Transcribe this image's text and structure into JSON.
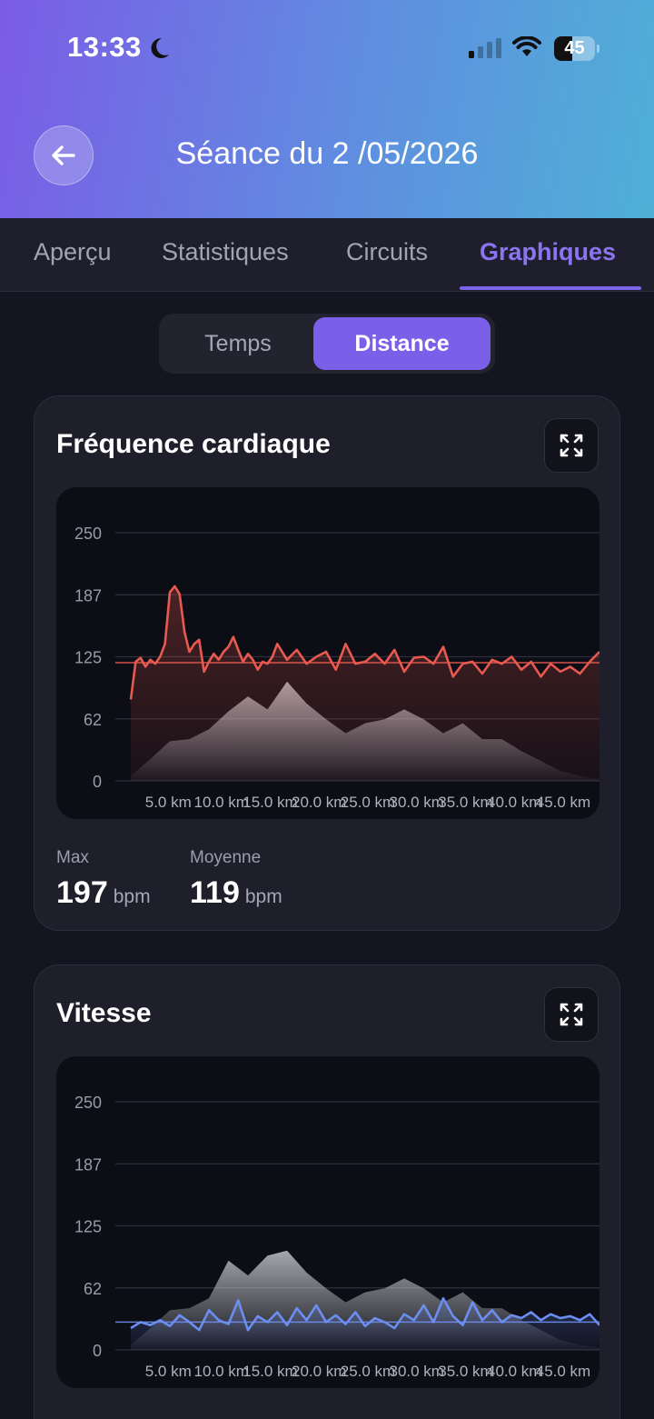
{
  "status_bar": {
    "time": "13:33",
    "battery": "45",
    "battery_level": 0.45,
    "icons": [
      "moon-icon",
      "signal-icon",
      "wifi-icon",
      "battery-icon"
    ]
  },
  "header": {
    "title": "Séance du 2 /05/2026",
    "back_icon": "arrow-left-icon"
  },
  "tabs": [
    {
      "label": "Aperçu",
      "active": false
    },
    {
      "label": "Statistiques",
      "active": false
    },
    {
      "label": "Circuits",
      "active": false
    },
    {
      "label": "Graphiques",
      "active": true
    }
  ],
  "segment": {
    "options": [
      "Temps",
      "Distance"
    ],
    "selected": "Distance"
  },
  "colors": {
    "accent": "#7a60e8",
    "heart_rate": "#e85a4f",
    "speed": "#6b8ef0",
    "background": "#151521",
    "card": "#1f1f2c"
  },
  "cards": {
    "heart_rate": {
      "title": "Fréquence cardiaque",
      "expand_icon": "expand-icon",
      "stats": [
        {
          "label": "Max",
          "value": "197",
          "unit": "bpm"
        },
        {
          "label": "Moyenne",
          "value": "119",
          "unit": "bpm"
        }
      ]
    },
    "speed": {
      "title": "Vitesse",
      "expand_icon": "expand-icon"
    }
  },
  "chart_data": [
    {
      "type": "line",
      "y_ticks": [
        "250",
        "187",
        "125",
        "62",
        "0"
      ],
      "x_ticks": [
        "5.0 km",
        "10.0 km",
        "15.0 km",
        "20.0 km",
        "25.0 km",
        "30.0 km",
        "35.0 km",
        "40.0 km",
        "45.0 km"
      ],
      "ylim": [
        0,
        250
      ],
      "xlim": [
        0,
        48
      ],
      "average_line": 119,
      "grid": true,
      "series": [
        {
          "color": "#e85a4f",
          "x": [
            0,
            0.5,
            1,
            1.5,
            2,
            2.5,
            3,
            3.5,
            4,
            4.5,
            5,
            5.5,
            6,
            6.5,
            7,
            7.5,
            8,
            8.5,
            9,
            9.5,
            10,
            10.5,
            11,
            11.5,
            12,
            12.5,
            13,
            13.5,
            14,
            14.5,
            15,
            16,
            17,
            18,
            19,
            20,
            21,
            22,
            23,
            24,
            25,
            26,
            27,
            28,
            29,
            30,
            31,
            32,
            33,
            34,
            35,
            36,
            37,
            38,
            39,
            40,
            41,
            42,
            43,
            44,
            45,
            46,
            47,
            48
          ],
          "values": [
            82,
            120,
            124,
            115,
            122,
            118,
            125,
            138,
            190,
            196,
            188,
            150,
            130,
            138,
            142,
            110,
            120,
            128,
            122,
            130,
            135,
            145,
            132,
            120,
            128,
            122,
            112,
            120,
            118,
            125,
            138,
            122,
            132,
            118,
            125,
            130,
            112,
            138,
            118,
            120,
            128,
            118,
            132,
            110,
            124,
            125,
            118,
            135,
            105,
            118,
            120,
            108,
            122,
            118,
            125,
            112,
            120,
            105,
            118,
            110,
            115,
            108,
            120,
            130
          ]
        },
        {
          "color": "#8f8f99",
          "name": "",
          "type": "area",
          "x": [
            0,
            2,
            4,
            6,
            8,
            10,
            12,
            14,
            16,
            18,
            20,
            22,
            24,
            26,
            28,
            30,
            32,
            34,
            36,
            38,
            40,
            42,
            44,
            46,
            48
          ],
          "values": [
            5,
            22,
            40,
            42,
            52,
            70,
            85,
            72,
            100,
            78,
            62,
            48,
            58,
            62,
            72,
            62,
            48,
            58,
            42,
            42,
            30,
            20,
            10,
            5,
            2
          ]
        }
      ]
    },
    {
      "type": "line",
      "y_ticks": [
        "250",
        "187",
        "125",
        "62",
        "0"
      ],
      "x_ticks": [
        "5.0 km",
        "10.0 km",
        "15.0 km",
        "20.0 km",
        "25.0 km",
        "30.0 km",
        "35.0 km",
        "40.0 km",
        "45.0 km"
      ],
      "ylim": [
        0,
        250
      ],
      "xlim": [
        0,
        48
      ],
      "average_line": 28,
      "grid": true,
      "series": [
        {
          "color": "#6b8ef0",
          "x": [
            0,
            1,
            2,
            3,
            4,
            5,
            6,
            7,
            8,
            9,
            10,
            11,
            12,
            13,
            14,
            15,
            16,
            17,
            18,
            19,
            20,
            21,
            22,
            23,
            24,
            25,
            26,
            27,
            28,
            29,
            30,
            31,
            32,
            33,
            34,
            35,
            36,
            37,
            38,
            39,
            40,
            41,
            42,
            43,
            44,
            45,
            46,
            47,
            48
          ],
          "values": [
            22,
            28,
            25,
            30,
            24,
            35,
            28,
            20,
            40,
            30,
            26,
            50,
            20,
            34,
            28,
            38,
            25,
            42,
            30,
            45,
            28,
            35,
            26,
            38,
            24,
            32,
            28,
            22,
            36,
            30,
            45,
            28,
            52,
            34,
            25,
            48,
            30,
            40,
            28,
            35,
            32,
            38,
            30,
            36,
            32,
            34,
            30,
            36,
            25
          ]
        },
        {
          "color": "#8f8f99",
          "name": "",
          "type": "area",
          "x": [
            0,
            2,
            4,
            6,
            8,
            10,
            12,
            14,
            16,
            18,
            20,
            22,
            24,
            26,
            28,
            30,
            32,
            34,
            36,
            38,
            40,
            42,
            44,
            46,
            48
          ],
          "values": [
            5,
            22,
            40,
            42,
            52,
            90,
            75,
            95,
            100,
            78,
            62,
            48,
            58,
            62,
            72,
            62,
            48,
            58,
            42,
            42,
            30,
            20,
            10,
            5,
            2
          ]
        }
      ]
    }
  ]
}
